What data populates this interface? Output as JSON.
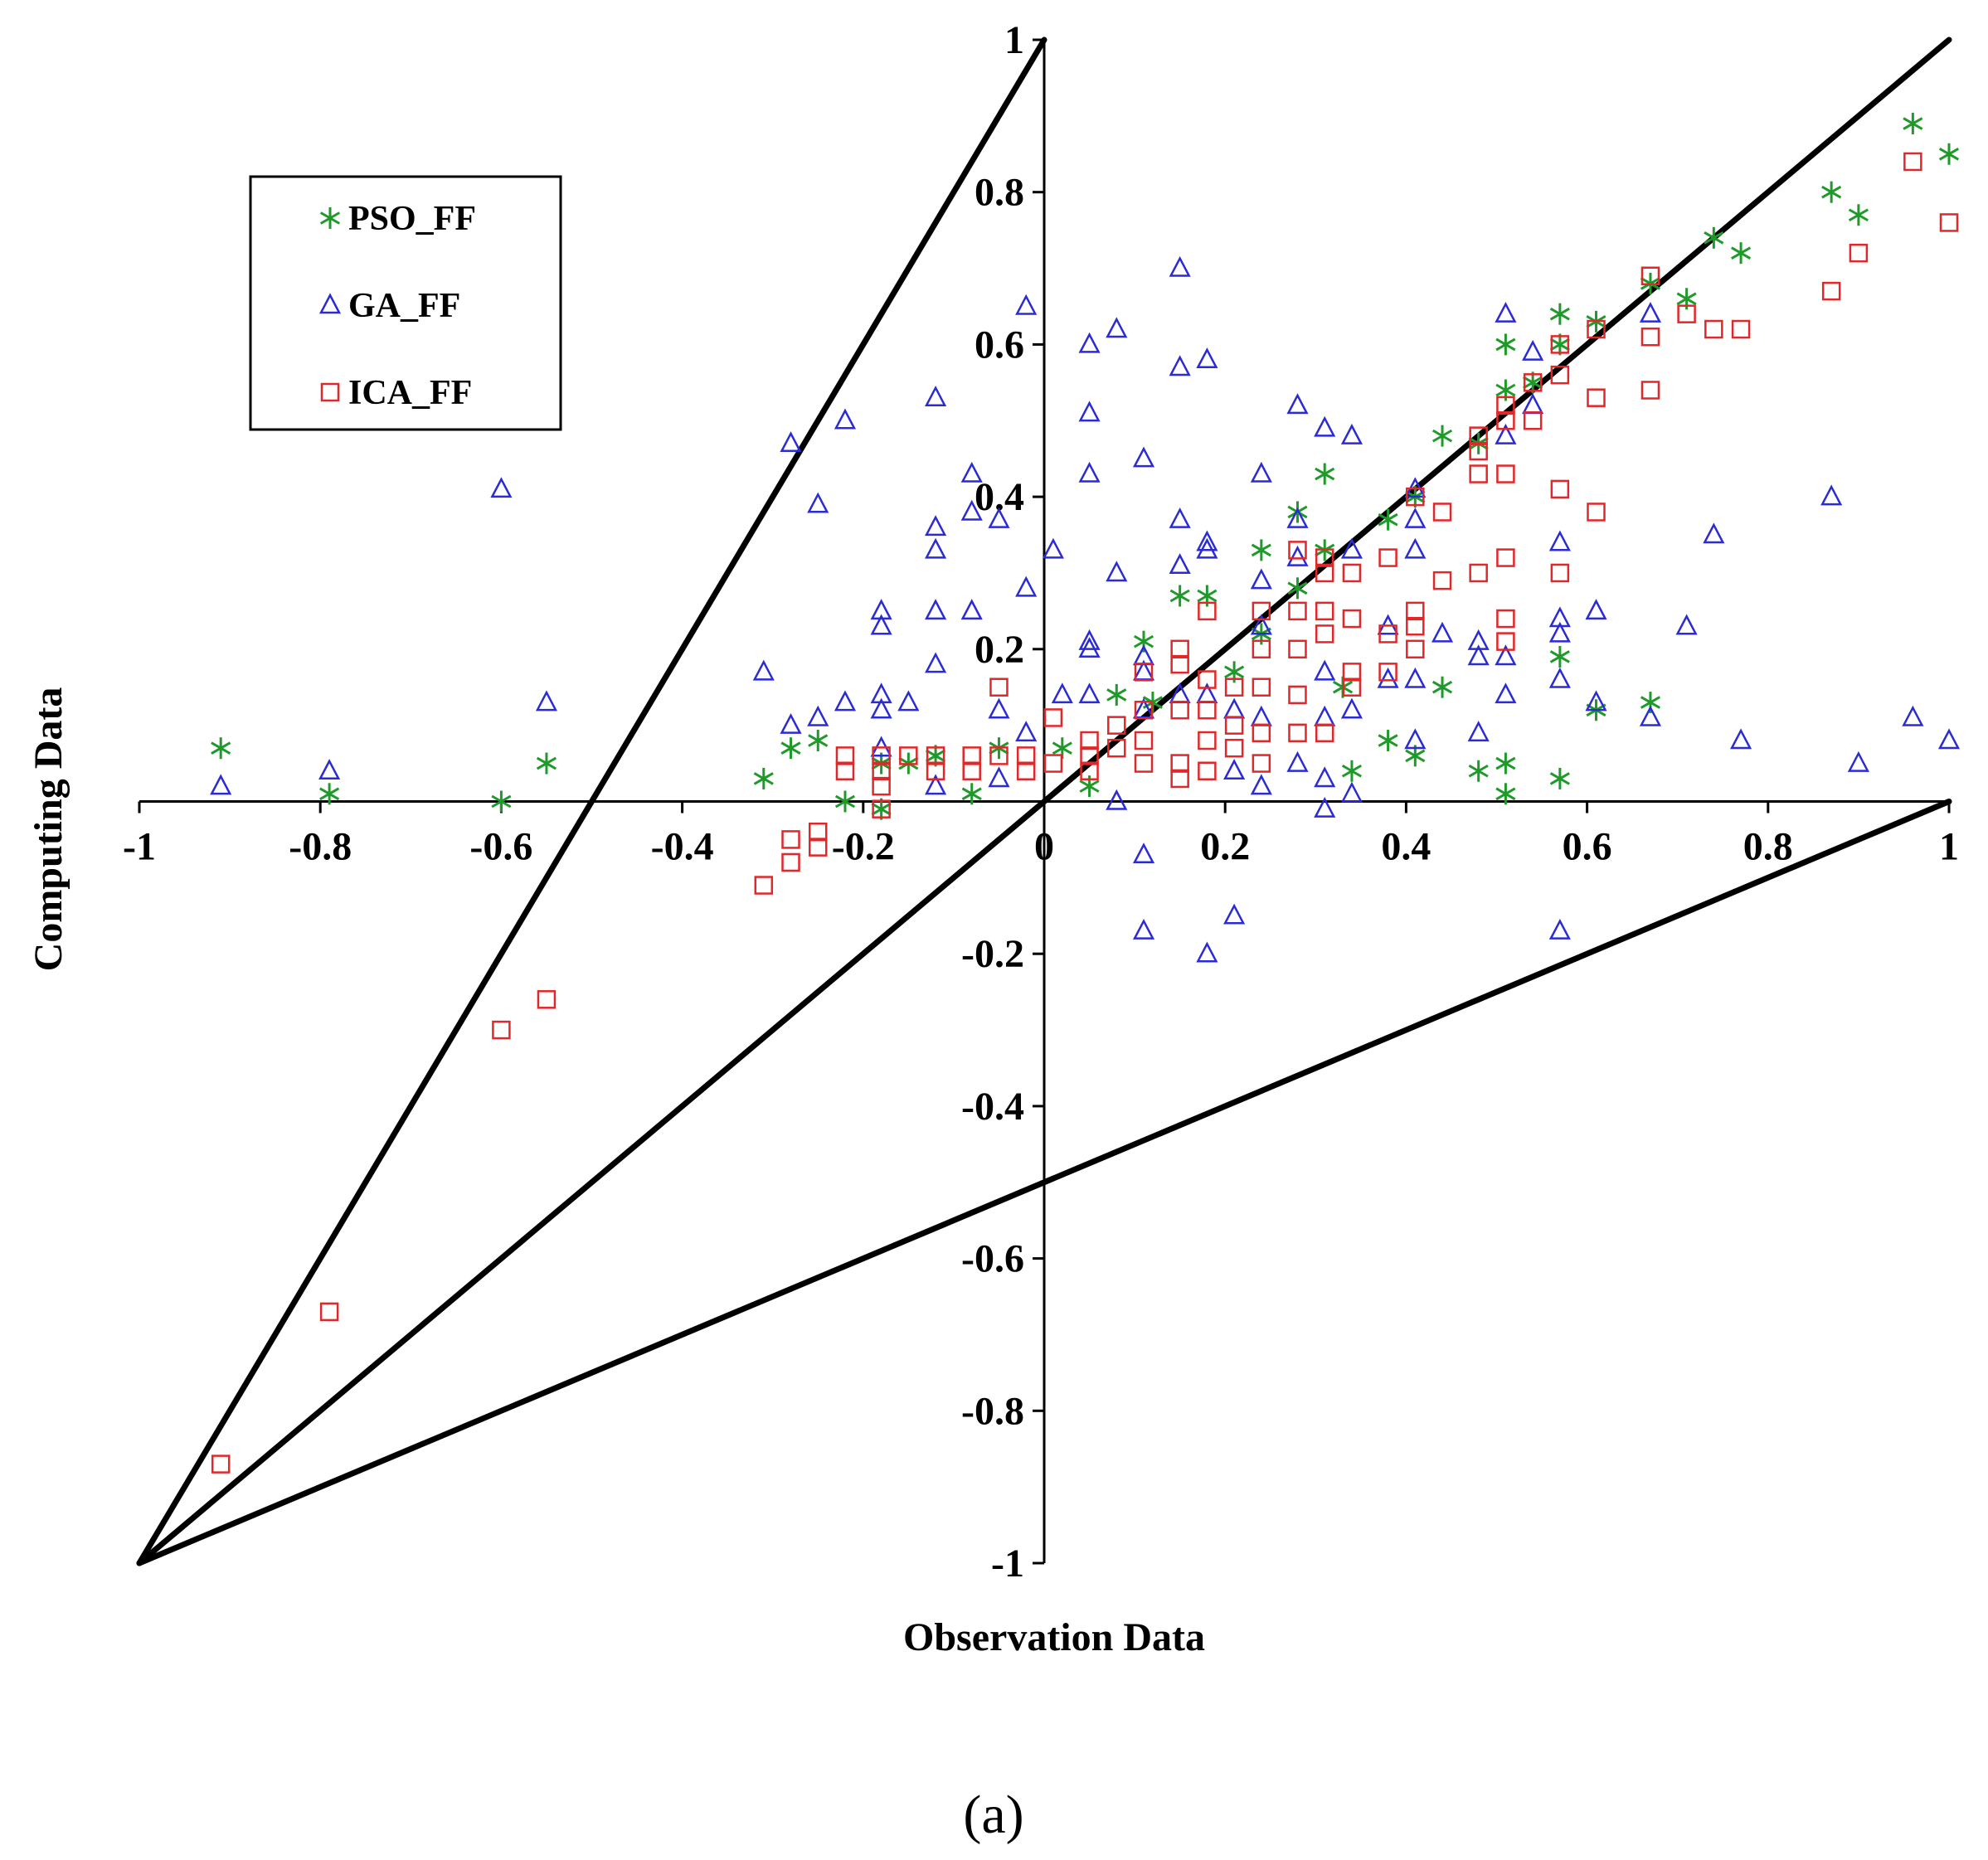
{
  "chart_data": {
    "type": "scatter",
    "title": "",
    "caption": "(a)",
    "xlabel": "Observation Data",
    "ylabel": "Computing Data",
    "xlim": [
      -1,
      1
    ],
    "ylim": [
      -1,
      1
    ],
    "x_ticks": [
      "-1",
      "-0.8",
      "-0.6",
      "-0.4",
      "-0.2",
      "0",
      "0.2",
      "0.4",
      "0.6",
      "0.8",
      "1"
    ],
    "y_ticks": [
      "-1",
      "-0.8",
      "-0.6",
      "-0.4",
      "-0.2",
      "0",
      "0.2",
      "0.4",
      "0.6",
      "0.8",
      "1"
    ],
    "grid": false,
    "legend_position": "top-left",
    "reference_lines": [
      {
        "name": "slope-2",
        "from": [
          -1,
          -1
        ],
        "to": [
          0,
          1
        ]
      },
      {
        "name": "slope-1",
        "from": [
          -1,
          -1
        ],
        "to": [
          1,
          1
        ]
      },
      {
        "name": "slope-0.5",
        "from": [
          -1,
          -1
        ],
        "to": [
          1,
          0
        ]
      }
    ],
    "series": [
      {
        "name": "PSO_FF",
        "marker": "asterisk",
        "color": "#1f9a2a",
        "points": [
          [
            -0.91,
            0.07
          ],
          [
            -0.79,
            0.01
          ],
          [
            -0.6,
            0.0
          ],
          [
            -0.55,
            0.05
          ],
          [
            -0.31,
            0.03
          ],
          [
            -0.28,
            0.07
          ],
          [
            -0.25,
            0.08
          ],
          [
            -0.22,
            0.0
          ],
          [
            -0.18,
            0.05
          ],
          [
            -0.18,
            -0.01
          ],
          [
            -0.15,
            0.05
          ],
          [
            -0.12,
            0.06
          ],
          [
            -0.08,
            0.01
          ],
          [
            -0.05,
            0.07
          ],
          [
            0.02,
            0.07
          ],
          [
            0.05,
            0.02
          ],
          [
            0.08,
            0.14
          ],
          [
            0.11,
            0.21
          ],
          [
            0.12,
            0.13
          ],
          [
            0.15,
            0.27
          ],
          [
            0.18,
            0.27
          ],
          [
            0.21,
            0.17
          ],
          [
            0.24,
            0.33
          ],
          [
            0.24,
            0.22
          ],
          [
            0.28,
            0.38
          ],
          [
            0.28,
            0.28
          ],
          [
            0.31,
            0.43
          ],
          [
            0.31,
            0.33
          ],
          [
            0.33,
            0.15
          ],
          [
            0.34,
            0.04
          ],
          [
            0.38,
            0.37
          ],
          [
            0.38,
            0.08
          ],
          [
            0.41,
            0.4
          ],
          [
            0.41,
            0.06
          ],
          [
            0.44,
            0.48
          ],
          [
            0.44,
            0.15
          ],
          [
            0.48,
            0.47
          ],
          [
            0.48,
            0.04
          ],
          [
            0.51,
            0.6
          ],
          [
            0.51,
            0.54
          ],
          [
            0.51,
            0.05
          ],
          [
            0.51,
            0.01
          ],
          [
            0.54,
            0.55
          ],
          [
            0.57,
            0.64
          ],
          [
            0.57,
            0.6
          ],
          [
            0.57,
            0.19
          ],
          [
            0.57,
            0.03
          ],
          [
            0.61,
            0.63
          ],
          [
            0.61,
            0.12
          ],
          [
            0.67,
            0.68
          ],
          [
            0.67,
            0.13
          ],
          [
            0.71,
            0.66
          ],
          [
            0.74,
            0.74
          ],
          [
            0.77,
            0.72
          ],
          [
            0.87,
            0.8
          ],
          [
            0.9,
            0.77
          ],
          [
            0.96,
            0.89
          ],
          [
            1.0,
            0.85
          ]
        ]
      },
      {
        "name": "GA_FF",
        "marker": "triangle",
        "color": "#2b2bd6",
        "points": [
          [
            -0.91,
            0.02
          ],
          [
            -0.79,
            0.04
          ],
          [
            -0.6,
            0.41
          ],
          [
            -0.55,
            0.13
          ],
          [
            -0.31,
            0.17
          ],
          [
            -0.28,
            0.47
          ],
          [
            -0.28,
            0.1
          ],
          [
            -0.25,
            0.39
          ],
          [
            -0.25,
            0.11
          ],
          [
            -0.22,
            0.5
          ],
          [
            -0.22,
            0.13
          ],
          [
            -0.18,
            0.25
          ],
          [
            -0.18,
            0.23
          ],
          [
            -0.18,
            0.14
          ],
          [
            -0.18,
            0.12
          ],
          [
            -0.18,
            0.07
          ],
          [
            -0.15,
            0.13
          ],
          [
            -0.12,
            0.53
          ],
          [
            -0.12,
            0.36
          ],
          [
            -0.12,
            0.33
          ],
          [
            -0.12,
            0.25
          ],
          [
            -0.12,
            0.18
          ],
          [
            -0.12,
            0.02
          ],
          [
            -0.08,
            0.43
          ],
          [
            -0.08,
            0.38
          ],
          [
            -0.08,
            0.25
          ],
          [
            -0.05,
            0.37
          ],
          [
            -0.05,
            0.12
          ],
          [
            -0.05,
            0.03
          ],
          [
            -0.02,
            0.65
          ],
          [
            -0.02,
            0.28
          ],
          [
            -0.02,
            0.09
          ],
          [
            0.01,
            0.33
          ],
          [
            0.02,
            0.14
          ],
          [
            0.05,
            0.6
          ],
          [
            0.05,
            0.51
          ],
          [
            0.05,
            0.43
          ],
          [
            0.05,
            0.21
          ],
          [
            0.05,
            0.2
          ],
          [
            0.05,
            0.14
          ],
          [
            0.08,
            0.62
          ],
          [
            0.08,
            0.3
          ],
          [
            0.08,
            0.0
          ],
          [
            0.11,
            0.45
          ],
          [
            0.11,
            0.19
          ],
          [
            0.11,
            0.17
          ],
          [
            0.11,
            0.12
          ],
          [
            0.11,
            -0.07
          ],
          [
            0.11,
            -0.17
          ],
          [
            0.15,
            0.7
          ],
          [
            0.15,
            0.57
          ],
          [
            0.15,
            0.37
          ],
          [
            0.15,
            0.31
          ],
          [
            0.15,
            0.14
          ],
          [
            0.18,
            0.58
          ],
          [
            0.18,
            0.34
          ],
          [
            0.18,
            0.33
          ],
          [
            0.18,
            0.14
          ],
          [
            0.18,
            -0.2
          ],
          [
            0.21,
            0.12
          ],
          [
            0.21,
            0.04
          ],
          [
            0.21,
            -0.15
          ],
          [
            0.24,
            0.43
          ],
          [
            0.24,
            0.29
          ],
          [
            0.24,
            0.23
          ],
          [
            0.24,
            0.11
          ],
          [
            0.24,
            0.02
          ],
          [
            0.28,
            0.52
          ],
          [
            0.28,
            0.37
          ],
          [
            0.28,
            0.32
          ],
          [
            0.28,
            0.05
          ],
          [
            0.31,
            0.49
          ],
          [
            0.31,
            0.17
          ],
          [
            0.31,
            0.11
          ],
          [
            0.31,
            0.03
          ],
          [
            0.31,
            -0.01
          ],
          [
            0.34,
            0.48
          ],
          [
            0.34,
            0.33
          ],
          [
            0.34,
            0.12
          ],
          [
            0.34,
            0.01
          ],
          [
            0.38,
            0.23
          ],
          [
            0.38,
            0.16
          ],
          [
            0.41,
            0.41
          ],
          [
            0.41,
            0.37
          ],
          [
            0.41,
            0.33
          ],
          [
            0.41,
            0.16
          ],
          [
            0.41,
            0.08
          ],
          [
            0.44,
            0.22
          ],
          [
            0.48,
            0.21
          ],
          [
            0.48,
            0.19
          ],
          [
            0.48,
            0.09
          ],
          [
            0.51,
            0.64
          ],
          [
            0.51,
            0.48
          ],
          [
            0.51,
            0.19
          ],
          [
            0.51,
            0.14
          ],
          [
            0.54,
            0.59
          ],
          [
            0.54,
            0.52
          ],
          [
            0.57,
            0.34
          ],
          [
            0.57,
            0.24
          ],
          [
            0.57,
            0.22
          ],
          [
            0.57,
            0.16
          ],
          [
            0.57,
            -0.17
          ],
          [
            0.61,
            0.25
          ],
          [
            0.61,
            0.13
          ],
          [
            0.67,
            0.64
          ],
          [
            0.67,
            0.11
          ],
          [
            0.71,
            0.23
          ],
          [
            0.74,
            0.35
          ],
          [
            0.77,
            0.08
          ],
          [
            0.87,
            0.4
          ],
          [
            0.9,
            0.05
          ],
          [
            0.96,
            0.11
          ],
          [
            1.0,
            0.08
          ]
        ]
      },
      {
        "name": "ICA_FF",
        "marker": "square",
        "color": "#e0282a",
        "points": [
          [
            -0.91,
            -0.87
          ],
          [
            -0.79,
            -0.67
          ],
          [
            -0.6,
            -0.3
          ],
          [
            -0.55,
            -0.26
          ],
          [
            -0.31,
            -0.11
          ],
          [
            -0.28,
            -0.08
          ],
          [
            -0.28,
            -0.05
          ],
          [
            -0.25,
            -0.06
          ],
          [
            -0.25,
            -0.04
          ],
          [
            -0.22,
            0.04
          ],
          [
            -0.22,
            0.06
          ],
          [
            -0.18,
            0.06
          ],
          [
            -0.18,
            0.04
          ],
          [
            -0.18,
            0.02
          ],
          [
            -0.18,
            -0.01
          ],
          [
            -0.15,
            0.06
          ],
          [
            -0.12,
            0.06
          ],
          [
            -0.12,
            0.04
          ],
          [
            -0.08,
            0.06
          ],
          [
            -0.08,
            0.04
          ],
          [
            -0.05,
            0.15
          ],
          [
            -0.05,
            0.06
          ],
          [
            -0.02,
            0.06
          ],
          [
            -0.02,
            0.04
          ],
          [
            0.01,
            0.11
          ],
          [
            0.01,
            0.05
          ],
          [
            0.05,
            0.08
          ],
          [
            0.05,
            0.06
          ],
          [
            0.05,
            0.04
          ],
          [
            0.08,
            0.1
          ],
          [
            0.08,
            0.07
          ],
          [
            0.11,
            0.17
          ],
          [
            0.11,
            0.12
          ],
          [
            0.11,
            0.08
          ],
          [
            0.11,
            0.05
          ],
          [
            0.15,
            0.2
          ],
          [
            0.15,
            0.18
          ],
          [
            0.15,
            0.12
          ],
          [
            0.15,
            0.05
          ],
          [
            0.15,
            0.03
          ],
          [
            0.18,
            0.25
          ],
          [
            0.18,
            0.16
          ],
          [
            0.18,
            0.12
          ],
          [
            0.18,
            0.08
          ],
          [
            0.18,
            0.04
          ],
          [
            0.21,
            0.15
          ],
          [
            0.21,
            0.1
          ],
          [
            0.21,
            0.07
          ],
          [
            0.24,
            0.25
          ],
          [
            0.24,
            0.2
          ],
          [
            0.24,
            0.15
          ],
          [
            0.24,
            0.09
          ],
          [
            0.24,
            0.05
          ],
          [
            0.28,
            0.33
          ],
          [
            0.28,
            0.25
          ],
          [
            0.28,
            0.2
          ],
          [
            0.28,
            0.14
          ],
          [
            0.28,
            0.09
          ],
          [
            0.31,
            0.32
          ],
          [
            0.31,
            0.3
          ],
          [
            0.31,
            0.25
          ],
          [
            0.31,
            0.22
          ],
          [
            0.31,
            0.09
          ],
          [
            0.34,
            0.3
          ],
          [
            0.34,
            0.24
          ],
          [
            0.34,
            0.17
          ],
          [
            0.34,
            0.15
          ],
          [
            0.38,
            0.32
          ],
          [
            0.38,
            0.22
          ],
          [
            0.38,
            0.17
          ],
          [
            0.41,
            0.4
          ],
          [
            0.41,
            0.25
          ],
          [
            0.41,
            0.23
          ],
          [
            0.41,
            0.2
          ],
          [
            0.44,
            0.38
          ],
          [
            0.44,
            0.29
          ],
          [
            0.48,
            0.48
          ],
          [
            0.48,
            0.46
          ],
          [
            0.48,
            0.43
          ],
          [
            0.48,
            0.3
          ],
          [
            0.51,
            0.52
          ],
          [
            0.51,
            0.5
          ],
          [
            0.51,
            0.43
          ],
          [
            0.51,
            0.32
          ],
          [
            0.51,
            0.24
          ],
          [
            0.51,
            0.21
          ],
          [
            0.54,
            0.55
          ],
          [
            0.54,
            0.5
          ],
          [
            0.57,
            0.6
          ],
          [
            0.57,
            0.56
          ],
          [
            0.57,
            0.41
          ],
          [
            0.57,
            0.3
          ],
          [
            0.61,
            0.62
          ],
          [
            0.61,
            0.53
          ],
          [
            0.61,
            0.38
          ],
          [
            0.67,
            0.69
          ],
          [
            0.67,
            0.61
          ],
          [
            0.67,
            0.54
          ],
          [
            0.71,
            0.64
          ],
          [
            0.74,
            0.62
          ],
          [
            0.77,
            0.62
          ],
          [
            0.87,
            0.67
          ],
          [
            0.9,
            0.72
          ],
          [
            0.96,
            0.84
          ],
          [
            1.0,
            0.76
          ]
        ]
      }
    ]
  }
}
